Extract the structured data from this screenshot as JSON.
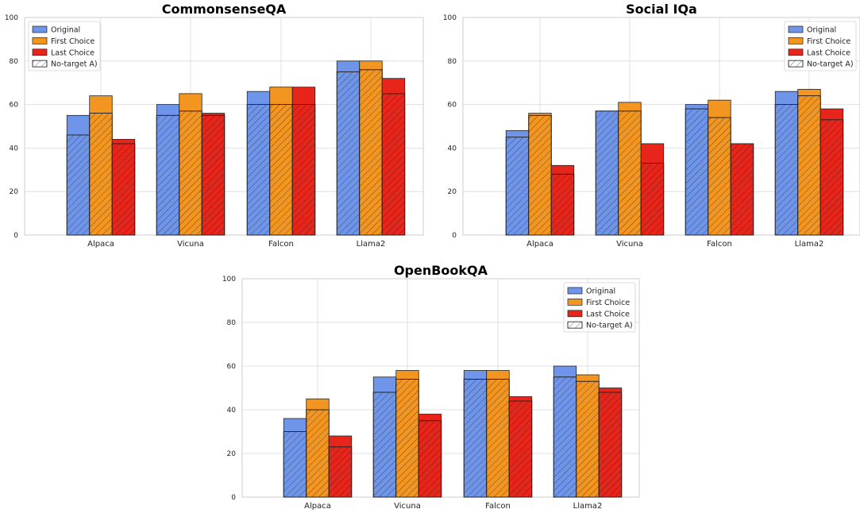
{
  "colors": {
    "original": "#6f95ea",
    "first_choice": "#f39521",
    "last_choice": "#e8251b",
    "grid": "#d9d9d9"
  },
  "legend": [
    "Original",
    "First Choice",
    "Last Choice",
    "No-target A)"
  ],
  "chart_data": [
    {
      "type": "bar",
      "title": "CommonsenseQA",
      "categories": [
        "Alpaca",
        "Vicuna",
        "Falcon",
        "Llama2"
      ],
      "ylim": [
        0,
        100
      ],
      "yticks": [
        0,
        20,
        40,
        60,
        80,
        100
      ],
      "grid": true,
      "legend_position": "top-left",
      "series": [
        {
          "name": "Original",
          "values": [
            55,
            60,
            66,
            80
          ]
        },
        {
          "name": "First Choice",
          "values": [
            64,
            65,
            68,
            80
          ]
        },
        {
          "name": "Last Choice",
          "values": [
            44,
            56,
            68,
            72
          ]
        }
      ],
      "no_target_series": [
        {
          "name": "Original",
          "values": [
            46,
            55,
            60,
            75
          ]
        },
        {
          "name": "First Choice",
          "values": [
            56,
            57,
            60,
            76
          ]
        },
        {
          "name": "Last Choice",
          "values": [
            42,
            55,
            60,
            65
          ]
        }
      ]
    },
    {
      "type": "bar",
      "title": "Social IQa",
      "categories": [
        "Alpaca",
        "Vicuna",
        "Falcon",
        "Llama2"
      ],
      "ylim": [
        0,
        100
      ],
      "yticks": [
        0,
        20,
        40,
        60,
        80,
        100
      ],
      "grid": true,
      "legend_position": "top-right",
      "series": [
        {
          "name": "Original",
          "values": [
            48,
            57,
            60,
            66
          ]
        },
        {
          "name": "First Choice",
          "values": [
            56,
            61,
            62,
            67
          ]
        },
        {
          "name": "Last Choice",
          "values": [
            32,
            42,
            42,
            58
          ]
        }
      ],
      "no_target_series": [
        {
          "name": "Original",
          "values": [
            45,
            57,
            58,
            60
          ]
        },
        {
          "name": "First Choice",
          "values": [
            55,
            57,
            54,
            64
          ]
        },
        {
          "name": "Last Choice",
          "values": [
            28,
            33,
            42,
            53
          ]
        }
      ]
    },
    {
      "type": "bar",
      "title": "OpenBookQA",
      "categories": [
        "Alpaca",
        "Vicuna",
        "Falcon",
        "Llama2"
      ],
      "ylim": [
        0,
        100
      ],
      "yticks": [
        0,
        20,
        40,
        60,
        80,
        100
      ],
      "grid": true,
      "legend_position": "top-right",
      "series": [
        {
          "name": "Original",
          "values": [
            36,
            55,
            58,
            60
          ]
        },
        {
          "name": "First Choice",
          "values": [
            45,
            58,
            58,
            56
          ]
        },
        {
          "name": "Last Choice",
          "values": [
            28,
            38,
            46,
            50
          ]
        }
      ],
      "no_target_series": [
        {
          "name": "Original",
          "values": [
            30,
            48,
            54,
            55
          ]
        },
        {
          "name": "First Choice",
          "values": [
            40,
            54,
            54,
            53
          ]
        },
        {
          "name": "Last Choice",
          "values": [
            23,
            35,
            44,
            48
          ]
        }
      ]
    }
  ]
}
